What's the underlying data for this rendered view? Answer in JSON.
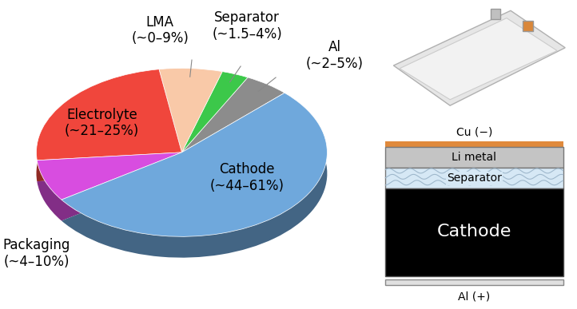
{
  "chart_data": {
    "type": "pie",
    "categories": [
      "Al",
      "Separator",
      "LMA",
      "Electrolyte",
      "Packaging",
      "Cathode"
    ],
    "labels": [
      "Al\n(~2–5%)",
      "Separator\n(~1.5–4%)",
      "LMA\n(~0–9%)",
      "Electrolyte\n(~21–25%)",
      "Packaging\n(~4–10%)",
      "Cathode\n(~44–61%)"
    ],
    "values": [
      5,
      3,
      7,
      24,
      8,
      53
    ],
    "colors": [
      "#8c8c8c",
      "#3cc84a",
      "#f9c9a8",
      "#f0463c",
      "#d84de0",
      "#6fa8dc"
    ]
  },
  "cell_diagram": {
    "top_collector": "Cu (−)",
    "layers": [
      "Li metal",
      "Separator",
      "Cathode"
    ],
    "bottom_collector": "Al (+)"
  }
}
